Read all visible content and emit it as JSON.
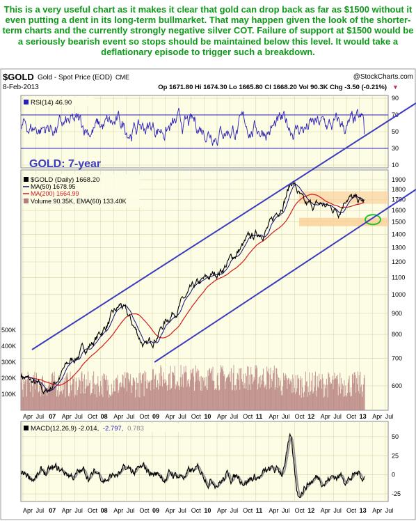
{
  "caption": "This is a very useful chart as it makes it clear that gold can drop back as far as $1500 without it even putting a dent in its long-term bullmarket. That may happen given the look of the shorter-term charts and the currently strongly negative silver COT. Failure of support at $1500 would be a seriously bearish event so stops should be maintained below this level. It would take a deflationary episode to trigger such a breakdown.",
  "header": {
    "symbol": "$GOLD",
    "description": "Gold - Spot Price (EOD)",
    "exchange": "CME",
    "source": "@StockCharts.com",
    "date": "8-Feb-2013",
    "ohlc": "Op 1671.80  Hi 1674.30  Lo 1665.80  Cl 1668.20  Vol 90.3K  Chg -3.50 (-0.21%)"
  },
  "annotation": "GOLD: 7-year",
  "legend": {
    "rsi": "RSI(14) 46.90",
    "price": "$GOLD (Daily) 1668.20",
    "ma50": "MA(50) 1678.95",
    "ma200": "MA(200) 1664.99",
    "volume": "Volume 90.35K, EMA(60) 133.40K",
    "macd": "MACD(12,26,9) -2.014,",
    "macd_signal": "-2.797,",
    "macd_hist": "0.783"
  },
  "colors": {
    "caption": "#0f9a1a",
    "panel_bg": "#fdfce4",
    "grid": "#d4d1a4",
    "rsi": "#2a1fb8",
    "price": "#000000",
    "ma50": "#0a0a7a",
    "ma200": "#d11a1a",
    "volume": "#b57d7d",
    "channel": "#3b3bc0",
    "support_zone": "#f9d29b",
    "target_circle": "#22c22a",
    "macd_line": "#000000",
    "macd_signal": "#999999"
  },
  "chart_data": [
    {
      "type": "line",
      "panel": "RSI",
      "series": [
        {
          "name": "RSI(14)",
          "last": 46.9
        }
      ],
      "ylim": [
        10,
        90
      ],
      "y_ticks": [
        10,
        30,
        50,
        70,
        90
      ],
      "guide_levels": [
        30,
        70
      ],
      "grid": true
    },
    {
      "type": "line",
      "panel": "Price",
      "title": "$GOLD (Daily) 1668.20",
      "log_scale": true,
      "ylim": [
        580,
        1900
      ],
      "y_ticks": [
        600,
        700,
        800,
        900,
        1000,
        1100,
        1200,
        1300,
        1400,
        1500,
        1600,
        1700,
        1800,
        1900
      ],
      "volume_ticks": [
        "100K",
        "200K",
        "300K",
        "400K",
        "500K"
      ],
      "x": [
        "2006-04",
        "2006-10",
        "2007-04",
        "2007-10",
        "2008-04",
        "2008-10",
        "2009-04",
        "2009-10",
        "2010-04",
        "2010-10",
        "2011-04",
        "2011-09",
        "2011-12",
        "2012-04",
        "2012-08",
        "2012-10",
        "2012-12",
        "2013-02"
      ],
      "series": [
        {
          "name": "$GOLD",
          "values": [
            640,
            575,
            690,
            780,
            940,
            740,
            900,
            1040,
            1150,
            1340,
            1480,
            1900,
            1620,
            1650,
            1600,
            1760,
            1690,
            1668
          ]
        },
        {
          "name": "MA(50)",
          "last": 1678.95
        },
        {
          "name": "MA(200)",
          "last": 1664.99
        },
        {
          "name": "Volume",
          "last": "90.35K"
        },
        {
          "name": "EMA(60)",
          "last": "133.40K"
        }
      ],
      "annotations": [
        "GOLD: 7-year",
        "support zone 1500",
        "resistance zone 1700-1800",
        "uptrend channel"
      ],
      "grid": true
    },
    {
      "type": "line",
      "panel": "MACD",
      "series": [
        {
          "name": "MACD(12,26,9)",
          "last": -2.014
        },
        {
          "name": "signal",
          "last": -2.797
        },
        {
          "name": "histogram",
          "last": 0.783
        }
      ],
      "ylim": [
        -35,
        70
      ],
      "y_ticks": [
        -25,
        0,
        25,
        50
      ],
      "grid": true
    }
  ],
  "x_axis": {
    "labels": [
      "Apr",
      "Jul",
      "07",
      "Apr",
      "Jul",
      "Oct",
      "08",
      "Apr",
      "Jul",
      "Oct",
      "09",
      "Apr",
      "Jul",
      "Oct",
      "10",
      "Apr",
      "Jul",
      "Oct",
      "11",
      "Apr",
      "Jul",
      "Oct",
      "12",
      "Apr",
      "Jul",
      "Oct",
      "13",
      "Apr",
      "Jul"
    ]
  }
}
